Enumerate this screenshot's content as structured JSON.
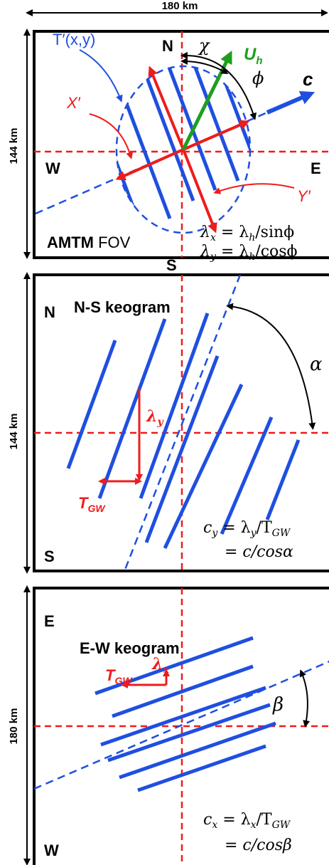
{
  "colors": {
    "blue": "#1f4fe0",
    "red": "#ee1c1c",
    "green": "#1e9e1e",
    "black": "#000000"
  },
  "top": {
    "width_label": "180 km",
    "height_label": "144 km",
    "north": "N",
    "south": "S",
    "west": "W",
    "east": "E",
    "t_prime": "T′(x,y)",
    "x_prime": "X′",
    "y_prime": "Y′",
    "chi": "χ",
    "phi": "ϕ",
    "u": "U",
    "u_sub": "h",
    "c": "c",
    "fov_bold": "AMTM",
    "fov_rest": " FOV",
    "eq1_lhs": "λ",
    "eq1_sub": "x",
    "eq1_rhs": " = λ",
    "eq1_sub2": "h",
    "eq1_tail": "/sinϕ",
    "eq2_lhs": "λ",
    "eq2_sub": "y",
    "eq2_rhs": " = λ",
    "eq2_sub2": "h",
    "eq2_tail": "/cosϕ"
  },
  "middle": {
    "height_label": "144 km",
    "north": "N",
    "south": "S",
    "title": "N-S keogram",
    "alpha": "α",
    "lambda": "λ",
    "lambda_sub": "y",
    "t": "T",
    "t_sub": "GW",
    "eq1_lhs": "c",
    "eq1_sub": "y",
    "eq1_mid": " = λ",
    "eq1_sub2": "y",
    "eq1_tail": "/T",
    "eq1_sub3": "GW",
    "eq2": "= c/cosα"
  },
  "bottom": {
    "height_label": "180 km",
    "east": "E",
    "west": "W",
    "title": "E-W keogram",
    "beta": "β",
    "lambda": "λ",
    "lambda_sub": "x",
    "t": "T",
    "t_sub": "GW",
    "eq1_lhs": "c",
    "eq1_sub": "x",
    "eq1_mid": " = λ",
    "eq1_sub2": "x",
    "eq1_tail": "/T",
    "eq1_sub3": "GW",
    "eq2": "= c/cosβ"
  }
}
